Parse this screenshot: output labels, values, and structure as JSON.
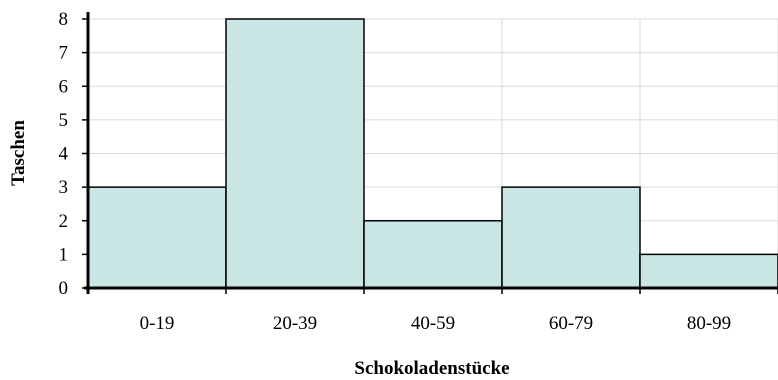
{
  "chart_data": {
    "type": "bar",
    "title": "",
    "xlabel": "Schokoladenstücke",
    "ylabel": "Taschen",
    "categories": [
      "0-19",
      "20-39",
      "40-59",
      "60-79",
      "80-99"
    ],
    "values": [
      3,
      8,
      2,
      3,
      1
    ],
    "ylim": [
      0,
      8
    ],
    "yticks": [
      "0",
      "1",
      "2",
      "3",
      "4",
      "5",
      "6",
      "7",
      "8"
    ],
    "grid": true,
    "legend": "none",
    "colors": {
      "bar_fill": "#c9e6e4",
      "bar_stroke": "#000000",
      "grid": "#d9d9d9"
    }
  }
}
